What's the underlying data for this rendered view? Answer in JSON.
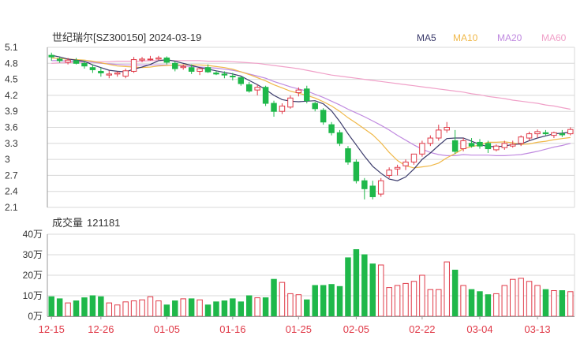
{
  "header": {
    "title": "世纪瑞尔[SZ300150] 2024-03-19",
    "legend": [
      {
        "label": "MA5",
        "color": "#3b3b6b"
      },
      {
        "label": "MA10",
        "color": "#f0b848"
      },
      {
        "label": "MA20",
        "color": "#c08ae0"
      },
      {
        "label": "MA60",
        "color": "#f0a0c8"
      }
    ]
  },
  "volume_header": {
    "label": "成交量",
    "value": "121181"
  },
  "colors": {
    "up": "#e03a48",
    "down": "#1fb84a",
    "grid": "#d8d8d8",
    "axis_text": "#333333",
    "date_text": "#e03a48"
  },
  "chart_data": [
    {
      "type": "candlestick",
      "y_ticks": [
        "5.1",
        "4.8",
        "4.5",
        "4.2",
        "3.9",
        "3.6",
        "3.3",
        "3",
        "2.7",
        "2.4",
        "2.1"
      ],
      "ylim": [
        2.1,
        5.1
      ],
      "x_labels": [
        "12-15",
        "12-26",
        "01-05",
        "01-16",
        "01-25",
        "02-05",
        "02-22",
        "03-04",
        "03-13"
      ],
      "x_label_positions": [
        0,
        6,
        14,
        22,
        30,
        37,
        45,
        52,
        59
      ],
      "ohlc": [
        [
          4.95,
          5.0,
          4.85,
          4.92
        ],
        [
          4.88,
          4.92,
          4.81,
          4.85
        ],
        [
          4.82,
          4.9,
          4.78,
          4.86
        ],
        [
          4.85,
          4.9,
          4.78,
          4.8
        ],
        [
          4.8,
          4.85,
          4.7,
          4.75
        ],
        [
          4.72,
          4.78,
          4.62,
          4.68
        ],
        [
          4.65,
          4.72,
          4.55,
          4.62
        ],
        [
          4.58,
          4.66,
          4.52,
          4.6
        ],
        [
          4.6,
          4.65,
          4.55,
          4.62
        ],
        [
          4.56,
          4.7,
          4.52,
          4.66
        ],
        [
          4.65,
          4.92,
          4.62,
          4.87
        ],
        [
          4.86,
          4.92,
          4.82,
          4.88
        ],
        [
          4.88,
          4.94,
          4.85,
          4.88
        ],
        [
          4.88,
          4.94,
          4.86,
          4.9
        ],
        [
          4.9,
          4.93,
          4.78,
          4.82
        ],
        [
          4.8,
          4.84,
          4.65,
          4.7
        ],
        [
          4.72,
          4.78,
          4.68,
          4.74
        ],
        [
          4.72,
          4.78,
          4.6,
          4.65
        ],
        [
          4.65,
          4.72,
          4.58,
          4.7
        ],
        [
          4.72,
          4.78,
          4.62,
          4.64
        ],
        [
          4.62,
          4.66,
          4.58,
          4.6
        ],
        [
          4.6,
          4.65,
          4.52,
          4.58
        ],
        [
          4.56,
          4.62,
          4.48,
          4.55
        ],
        [
          4.53,
          4.55,
          4.38,
          4.42
        ],
        [
          4.4,
          4.45,
          4.25,
          4.28
        ],
        [
          4.3,
          4.4,
          4.2,
          4.35
        ],
        [
          4.35,
          4.38,
          4.0,
          4.05
        ],
        [
          4.05,
          4.1,
          3.8,
          3.9
        ],
        [
          3.9,
          4.05,
          3.85,
          4.0
        ],
        [
          3.98,
          4.2,
          3.95,
          4.15
        ],
        [
          4.25,
          4.35,
          4.18,
          4.3
        ],
        [
          4.32,
          4.38,
          4.05,
          4.1
        ],
        [
          4.05,
          4.08,
          3.9,
          3.95
        ],
        [
          3.92,
          3.96,
          3.65,
          3.7
        ],
        [
          3.65,
          3.7,
          3.45,
          3.5
        ],
        [
          3.5,
          3.55,
          3.25,
          3.3
        ],
        [
          3.2,
          3.25,
          2.9,
          2.95
        ],
        [
          2.95,
          3.0,
          2.55,
          2.6
        ],
        [
          2.6,
          2.65,
          2.25,
          2.45
        ],
        [
          2.5,
          2.6,
          2.25,
          2.3
        ],
        [
          2.35,
          2.65,
          2.3,
          2.6
        ],
        [
          2.7,
          2.85,
          2.65,
          2.8
        ],
        [
          2.82,
          2.9,
          2.7,
          2.85
        ],
        [
          2.88,
          3.0,
          2.8,
          2.95
        ],
        [
          2.95,
          3.1,
          2.9,
          3.1
        ],
        [
          3.1,
          3.35,
          3.05,
          3.3
        ],
        [
          3.3,
          3.45,
          3.25,
          3.4
        ],
        [
          3.4,
          3.65,
          3.35,
          3.55
        ],
        [
          3.55,
          3.7,
          3.5,
          3.6
        ],
        [
          3.35,
          3.55,
          3.1,
          3.15
        ],
        [
          3.2,
          3.4,
          3.15,
          3.35
        ],
        [
          3.3,
          3.4,
          3.22,
          3.25
        ],
        [
          3.32,
          3.38,
          3.2,
          3.25
        ],
        [
          3.3,
          3.35,
          3.12,
          3.2
        ],
        [
          3.18,
          3.28,
          3.15,
          3.25
        ],
        [
          3.22,
          3.35,
          3.18,
          3.3
        ],
        [
          3.25,
          3.35,
          3.22,
          3.28
        ],
        [
          3.3,
          3.45,
          3.25,
          3.42
        ],
        [
          3.4,
          3.52,
          3.35,
          3.48
        ],
        [
          3.48,
          3.56,
          3.4,
          3.52
        ],
        [
          3.5,
          3.55,
          3.45,
          3.48
        ],
        [
          3.45,
          3.52,
          3.4,
          3.5
        ],
        [
          3.48,
          3.55,
          3.42,
          3.46
        ],
        [
          3.48,
          3.6,
          3.45,
          3.56
        ]
      ],
      "ma": {
        "MA5": [
          4.95,
          4.92,
          4.88,
          4.86,
          4.84,
          4.77,
          4.72,
          4.67,
          4.65,
          4.64,
          4.69,
          4.73,
          4.78,
          4.85,
          4.87,
          4.84,
          4.8,
          4.76,
          4.72,
          4.69,
          4.66,
          4.63,
          4.6,
          4.56,
          4.48,
          4.4,
          4.31,
          4.2,
          4.12,
          4.09,
          4.08,
          4.09,
          4.1,
          4.04,
          3.91,
          3.71,
          3.48,
          3.27,
          3.06,
          2.87,
          2.74,
          2.63,
          2.6,
          2.67,
          2.82,
          3.0,
          3.12,
          3.26,
          3.39,
          3.4,
          3.4,
          3.34,
          3.28,
          3.24,
          3.24,
          3.25,
          3.28,
          3.29,
          3.35,
          3.4,
          3.44,
          3.48,
          3.49,
          3.51
        ],
        "MA10": [
          4.9,
          4.89,
          4.88,
          4.87,
          4.86,
          4.84,
          4.81,
          4.78,
          4.75,
          4.74,
          4.73,
          4.72,
          4.73,
          4.75,
          4.76,
          4.77,
          4.77,
          4.77,
          4.77,
          4.76,
          4.74,
          4.72,
          4.69,
          4.64,
          4.59,
          4.53,
          4.47,
          4.4,
          4.34,
          4.28,
          4.24,
          4.2,
          4.15,
          4.08,
          4.0,
          3.9,
          3.78,
          3.68,
          3.57,
          3.46,
          3.31,
          3.13,
          2.98,
          2.88,
          2.84,
          2.86,
          2.88,
          2.93,
          3.03,
          3.11,
          3.2,
          3.24,
          3.27,
          3.32,
          3.32,
          3.33,
          3.31,
          3.28,
          3.29,
          3.32,
          3.34,
          3.37,
          3.39,
          3.41
        ],
        "MA20": [
          4.85,
          4.85,
          4.84,
          4.84,
          4.83,
          4.82,
          4.8,
          4.79,
          4.78,
          4.77,
          4.77,
          4.77,
          4.77,
          4.77,
          4.77,
          4.76,
          4.75,
          4.74,
          4.73,
          4.72,
          4.71,
          4.69,
          4.67,
          4.64,
          4.6,
          4.56,
          4.52,
          4.46,
          4.41,
          4.36,
          4.32,
          4.28,
          4.22,
          4.16,
          4.09,
          4.02,
          3.94,
          3.87,
          3.8,
          3.72,
          3.64,
          3.55,
          3.45,
          3.36,
          3.27,
          3.19,
          3.13,
          3.09,
          3.07,
          3.07,
          3.09,
          3.08,
          3.08,
          3.08,
          3.07,
          3.07,
          3.08,
          3.09,
          3.12,
          3.15,
          3.19,
          3.23,
          3.26,
          3.3
        ],
        "MA60": [
          4.8,
          4.81,
          4.81,
          4.82,
          4.82,
          4.83,
          4.83,
          4.83,
          4.84,
          4.84,
          4.84,
          4.84,
          4.85,
          4.85,
          4.85,
          4.85,
          4.85,
          4.85,
          4.85,
          4.84,
          4.84,
          4.84,
          4.83,
          4.82,
          4.81,
          4.8,
          4.78,
          4.76,
          4.74,
          4.72,
          4.7,
          4.67,
          4.64,
          4.61,
          4.58,
          4.56,
          4.54,
          4.52,
          4.5,
          4.48,
          4.46,
          4.44,
          4.42,
          4.4,
          4.38,
          4.36,
          4.34,
          4.32,
          4.3,
          4.28,
          4.26,
          4.23,
          4.21,
          4.18,
          4.16,
          4.14,
          4.11,
          4.09,
          4.07,
          4.05,
          4.02,
          4.0,
          3.97,
          3.94
        ]
      }
    },
    {
      "type": "bar",
      "title": "成交量 121181",
      "y_ticks": [
        "40万",
        "30万",
        "20万",
        "10万",
        "0万"
      ],
      "ylim": [
        0,
        400000
      ],
      "values": [
        95000,
        85000,
        65000,
        75000,
        90000,
        100000,
        95000,
        65000,
        55000,
        70000,
        75000,
        80000,
        95000,
        75000,
        55000,
        75000,
        85000,
        85000,
        80000,
        55000,
        70000,
        75000,
        85000,
        70000,
        100000,
        90000,
        90000,
        180000,
        165000,
        110000,
        105000,
        80000,
        150000,
        150000,
        155000,
        145000,
        285000,
        325000,
        300000,
        255000,
        250000,
        140000,
        150000,
        160000,
        170000,
        200000,
        130000,
        130000,
        265000,
        225000,
        150000,
        130000,
        120000,
        105000,
        110000,
        150000,
        180000,
        185000,
        170000,
        150000,
        130000,
        125000,
        125000,
        120000
      ],
      "last_value": "121181"
    }
  ]
}
